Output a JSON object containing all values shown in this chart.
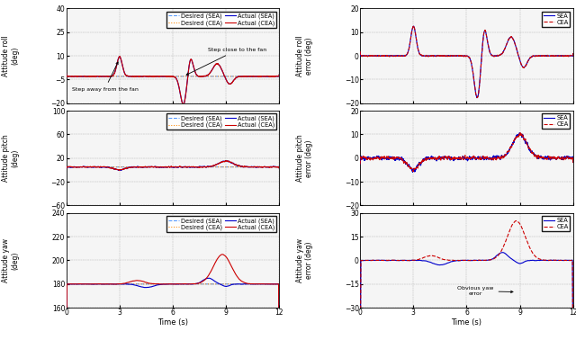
{
  "xlim": [
    0,
    12
  ],
  "xticks": [
    0,
    3,
    6,
    9,
    12
  ],
  "roll_ylim": [
    -20,
    40
  ],
  "roll_yticks": [
    -20,
    -5,
    10,
    25,
    40
  ],
  "pitch_ylim": [
    -60,
    100
  ],
  "pitch_yticks": [
    -60,
    -20,
    20,
    60,
    100
  ],
  "yaw_ylim": [
    160,
    240
  ],
  "yaw_yticks": [
    160,
    180,
    200,
    220,
    240
  ],
  "roll_err_ylim": [
    -20,
    20
  ],
  "roll_err_yticks": [
    -20,
    -10,
    0,
    10,
    20
  ],
  "pitch_err_ylim": [
    -20,
    20
  ],
  "pitch_err_yticks": [
    -20,
    -10,
    0,
    10,
    20
  ],
  "yaw_err_ylim": [
    -30,
    30
  ],
  "yaw_err_yticks": [
    -30,
    -15,
    0,
    15,
    30
  ],
  "color_sea_desired": "#5599FF",
  "color_cea_desired": "#FF8800",
  "color_sea_actual": "#0000CC",
  "color_cea_actual": "#CC0000",
  "xlabel": "Time (s)",
  "ylabel_roll": "Attitude roll\n(deg)",
  "ylabel_pitch": "Attitude pitch\n(deg)",
  "ylabel_yaw": "Attitude yaw\n(deg)",
  "ylabel_roll_err": "Attitude roll\nerror (deg)",
  "ylabel_pitch_err": "Attitude pitch\nerror (deg)",
  "ylabel_yaw_err": "Attitude yaw\nerror (deg)"
}
